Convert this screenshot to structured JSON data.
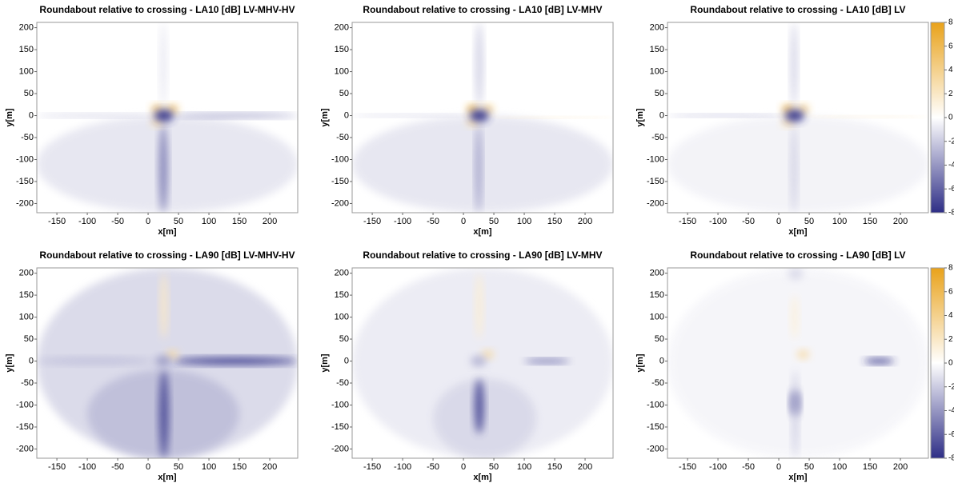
{
  "chart_data": [
    {
      "type": "heatmap",
      "title": "Roundabout relative to crossing - LA10 [dB] LV-MHV-HV",
      "x_label": "x[m]",
      "y_label": "y[m]",
      "xlim": [
        -183,
        246
      ],
      "ylim": [
        -221,
        212
      ],
      "xticks": [
        -150,
        -100,
        -50,
        0,
        50,
        100,
        150,
        200
      ],
      "yticks": [
        -200,
        -150,
        -100,
        -50,
        0,
        50,
        100,
        150,
        200
      ],
      "features": [
        {
          "x": [
            -183,
            246
          ],
          "y": [
            -221,
            0
          ],
          "value": -1
        },
        {
          "x": [
            -183,
            10
          ],
          "y": [
            -4,
            4
          ],
          "value": -2
        },
        {
          "x": [
            40,
            246
          ],
          "y": [
            -5,
            5
          ],
          "value": -4
        },
        {
          "x": [
            18,
            32
          ],
          "y": [
            -221,
            -20
          ],
          "value": -5
        },
        {
          "x": [
            20,
            30
          ],
          "y": [
            20,
            212
          ],
          "value": -1
        },
        {
          "x": [
            5,
            25
          ],
          "y": [
            5,
            25
          ],
          "value": 5
        },
        {
          "x": [
            30,
            50
          ],
          "y": [
            5,
            25
          ],
          "value": 5
        },
        {
          "x": [
            5,
            25
          ],
          "y": [
            -25,
            -5
          ],
          "value": 3
        },
        {
          "x": [
            10,
            42
          ],
          "y": [
            -14,
            14
          ],
          "value": -8
        }
      ]
    },
    {
      "type": "heatmap",
      "title": "Roundabout relative to crossing - LA10 [dB] LV-MHV",
      "x_label": "x[m]",
      "y_label": "y[m]",
      "xlim": [
        -183,
        246
      ],
      "ylim": [
        -221,
        212
      ],
      "xticks": [
        -150,
        -100,
        -50,
        0,
        50,
        100,
        150,
        200
      ],
      "yticks": [
        -200,
        -150,
        -100,
        -50,
        0,
        50,
        100,
        150,
        200
      ],
      "features": [
        {
          "x": [
            -183,
            246
          ],
          "y": [
            -221,
            0
          ],
          "value": -1
        },
        {
          "x": [
            -183,
            10
          ],
          "y": [
            -3,
            3
          ],
          "value": -2
        },
        {
          "x": [
            45,
            246
          ],
          "y": [
            -6,
            -2
          ],
          "value": 2
        },
        {
          "x": [
            20,
            30
          ],
          "y": [
            -221,
            -20
          ],
          "value": -4
        },
        {
          "x": [
            20,
            32
          ],
          "y": [
            20,
            212
          ],
          "value": -2
        },
        {
          "x": [
            5,
            25
          ],
          "y": [
            5,
            25
          ],
          "value": 6
        },
        {
          "x": [
            30,
            50
          ],
          "y": [
            5,
            25
          ],
          "value": 4
        },
        {
          "x": [
            5,
            25
          ],
          "y": [
            -25,
            -5
          ],
          "value": 3
        },
        {
          "x": [
            10,
            42
          ],
          "y": [
            -14,
            14
          ],
          "value": -8
        }
      ]
    },
    {
      "type": "heatmap",
      "title": "Roundabout relative to crossing - LA10 [dB] LV",
      "x_label": "x[m]",
      "y_label": "y[m]",
      "xlim": [
        -183,
        246
      ],
      "ylim": [
        -221,
        212
      ],
      "xticks": [
        -150,
        -100,
        -50,
        0,
        50,
        100,
        150,
        200
      ],
      "yticks": [
        -200,
        -150,
        -100,
        -50,
        0,
        50,
        100,
        150,
        200
      ],
      "colorbar": {
        "clim": [
          -8,
          8
        ],
        "ticks": [
          -8,
          -6,
          -4,
          -2,
          0,
          2,
          4,
          6,
          8
        ],
        "colors": [
          "#2e2e86",
          "#ffffff",
          "#e9a21a"
        ]
      },
      "features": [
        {
          "x": [
            -183,
            246
          ],
          "y": [
            -221,
            0
          ],
          "value": -0.5
        },
        {
          "x": [
            -183,
            10
          ],
          "y": [
            -3,
            3
          ],
          "value": -3
        },
        {
          "x": [
            45,
            246
          ],
          "y": [
            -5,
            -1
          ],
          "value": 2
        },
        {
          "x": [
            20,
            30
          ],
          "y": [
            -221,
            -20
          ],
          "value": -2
        },
        {
          "x": [
            20,
            30
          ],
          "y": [
            20,
            212
          ],
          "value": -2
        },
        {
          "x": [
            5,
            25
          ],
          "y": [
            5,
            25
          ],
          "value": 6
        },
        {
          "x": [
            30,
            50
          ],
          "y": [
            5,
            25
          ],
          "value": 4
        },
        {
          "x": [
            5,
            25
          ],
          "y": [
            -25,
            -5
          ],
          "value": 3
        },
        {
          "x": [
            10,
            42
          ],
          "y": [
            -14,
            14
          ],
          "value": -8
        }
      ]
    },
    {
      "type": "heatmap",
      "title": "Roundabout relative to crossing - LA90 [dB] LV-MHV-HV",
      "x_label": "x[m]",
      "y_label": "y[m]",
      "xlim": [
        -183,
        246
      ],
      "ylim": [
        -221,
        212
      ],
      "xticks": [
        -150,
        -100,
        -50,
        0,
        50,
        100,
        150,
        200
      ],
      "yticks": [
        -200,
        -150,
        -100,
        -50,
        0,
        50,
        100,
        150,
        200
      ],
      "features": [
        {
          "x": [
            -183,
            246
          ],
          "y": [
            -221,
            212
          ],
          "value": -1.5
        },
        {
          "x": [
            -100,
            150
          ],
          "y": [
            -221,
            -20
          ],
          "value": -2.5
        },
        {
          "x": [
            -183,
            10
          ],
          "y": [
            -8,
            8
          ],
          "value": -2.5
        },
        {
          "x": [
            40,
            246
          ],
          "y": [
            -8,
            8
          ],
          "value": -8
        },
        {
          "x": [
            18,
            34
          ],
          "y": [
            -221,
            -20
          ],
          "value": -7
        },
        {
          "x": [
            20,
            32
          ],
          "y": [
            50,
            200
          ],
          "value": 2
        },
        {
          "x": [
            30,
            50
          ],
          "y": [
            5,
            25
          ],
          "value": 3
        },
        {
          "x": [
            12,
            38
          ],
          "y": [
            -12,
            12
          ],
          "value": -4
        }
      ]
    },
    {
      "type": "heatmap",
      "title": "Roundabout relative to crossing - LA90 [dB] LV-MHV",
      "x_label": "x[m]",
      "y_label": "y[m]",
      "xlim": [
        -183,
        246
      ],
      "ylim": [
        -221,
        212
      ],
      "xticks": [
        -150,
        -100,
        -50,
        0,
        50,
        100,
        150,
        200
      ],
      "yticks": [
        -200,
        -150,
        -100,
        -50,
        0,
        50,
        100,
        150,
        200
      ],
      "features": [
        {
          "x": [
            -183,
            246
          ],
          "y": [
            -221,
            212
          ],
          "value": -0.8
        },
        {
          "x": [
            -50,
            120
          ],
          "y": [
            -221,
            -40
          ],
          "value": -1.5
        },
        {
          "x": [
            100,
            175
          ],
          "y": [
            -5,
            5
          ],
          "value": -6
        },
        {
          "x": [
            18,
            34
          ],
          "y": [
            -165,
            -40
          ],
          "value": -7
        },
        {
          "x": [
            20,
            32
          ],
          "y": [
            50,
            200
          ],
          "value": 1.5
        },
        {
          "x": [
            30,
            50
          ],
          "y": [
            5,
            25
          ],
          "value": 3
        },
        {
          "x": [
            12,
            38
          ],
          "y": [
            -12,
            12
          ],
          "value": -3
        }
      ]
    },
    {
      "type": "heatmap",
      "title": "Roundabout relative to crossing - LA90 [dB] LV",
      "x_label": "x[m]",
      "y_label": "y[m]",
      "xlim": [
        -183,
        246
      ],
      "ylim": [
        -221,
        212
      ],
      "xticks": [
        -150,
        -100,
        -50,
        0,
        50,
        100,
        150,
        200
      ],
      "yticks": [
        -200,
        -150,
        -100,
        -50,
        0,
        50,
        100,
        150,
        200
      ],
      "colorbar": {
        "clim": [
          -8,
          8
        ],
        "ticks": [
          -8,
          -6,
          -4,
          -2,
          0,
          2,
          4,
          6,
          8
        ],
        "colors": [
          "#2e2e86",
          "#ffffff",
          "#e9a21a"
        ]
      },
      "features": [
        {
          "x": [
            -183,
            246
          ],
          "y": [
            -221,
            212
          ],
          "value": -0.4
        },
        {
          "x": [
            140,
            190
          ],
          "y": [
            -6,
            6
          ],
          "value": -8
        },
        {
          "x": [
            20,
            34
          ],
          "y": [
            -125,
            -65
          ],
          "value": -7
        },
        {
          "x": [
            22,
            32
          ],
          "y": [
            -221,
            -20
          ],
          "value": -2
        },
        {
          "x": [
            15,
            40
          ],
          "y": [
            185,
            212
          ],
          "value": -1.5
        },
        {
          "x": [
            20,
            32
          ],
          "y": [
            50,
            150
          ],
          "value": 1.2
        },
        {
          "x": [
            30,
            50
          ],
          "y": [
            5,
            25
          ],
          "value": 3
        }
      ]
    }
  ]
}
